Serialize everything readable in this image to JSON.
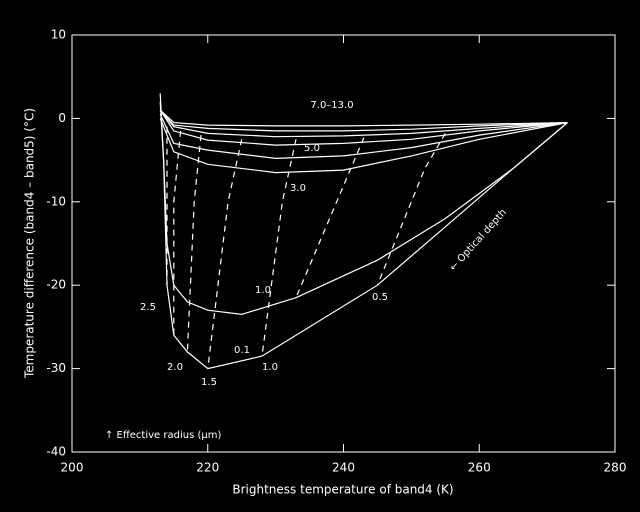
{
  "chart_data": {
    "type": "line",
    "xlabel": "Brightness temperature of band4 (K)",
    "ylabel": "Temperature difference (band4 – band5) (°C)",
    "xlim": [
      200,
      280
    ],
    "xticks": [
      200,
      220,
      240,
      260,
      280
    ],
    "ylim": [
      -40,
      10
    ],
    "yticks": [
      -40,
      -30,
      -20,
      -10,
      0,
      10
    ],
    "color": "#ffffff",
    "series": [
      {
        "x": [
          213,
          213.5,
          214,
          215,
          217,
          220,
          228,
          235,
          245,
          255,
          265,
          273
        ],
        "values": [
          3,
          -5,
          -20,
          -26,
          -28,
          -30,
          -28.5,
          -25,
          -20,
          -13,
          -6,
          -0.5
        ],
        "dashed": false
      },
      {
        "x": [
          213,
          213.5,
          214,
          215,
          217,
          220,
          225,
          233,
          245,
          255,
          265,
          273
        ],
        "values": [
          2,
          -5,
          -15,
          -20,
          -22,
          -23,
          -23.5,
          -21.5,
          -17,
          -12,
          -6,
          -0.5
        ],
        "dashed": false
      },
      {
        "x": [
          213,
          215,
          220,
          230,
          240,
          250,
          260,
          273
        ],
        "values": [
          0,
          -4,
          -5.5,
          -6.5,
          -6.2,
          -4.5,
          -2.5,
          -0.5
        ],
        "dashed": false
      },
      {
        "x": [
          213,
          215,
          220,
          230,
          240,
          250,
          260,
          273
        ],
        "values": [
          0.5,
          -3,
          -3.8,
          -4.8,
          -4.5,
          -3.5,
          -2,
          -0.5
        ],
        "dashed": false
      },
      {
        "x": [
          213,
          215,
          220,
          230,
          240,
          250,
          260,
          273
        ],
        "values": [
          1,
          -1.5,
          -2.6,
          -3.2,
          -3,
          -2.5,
          -1.5,
          -0.5
        ],
        "dashed": false
      },
      {
        "x": [
          213,
          215,
          220,
          230,
          240,
          250,
          260,
          273
        ],
        "values": [
          1,
          -1,
          -1.8,
          -2.2,
          -2.1,
          -1.8,
          -1.2,
          -0.5
        ],
        "dashed": false
      },
      {
        "x": [
          213,
          215,
          220,
          230,
          240,
          250,
          260,
          273
        ],
        "values": [
          1,
          -0.8,
          -1.2,
          -1.5,
          -1.5,
          -1.3,
          -0.9,
          -0.5
        ],
        "dashed": false
      },
      {
        "x": [
          213,
          215,
          220,
          230,
          240,
          250,
          260,
          273
        ],
        "values": [
          1,
          -0.5,
          -0.8,
          -0.9,
          -0.9,
          -0.8,
          -0.7,
          -0.5
        ],
        "dashed": false
      },
      {
        "x": [
          214,
          214,
          214
        ],
        "values": [
          -1,
          -10,
          -20
        ],
        "dashed": true
      },
      {
        "x": [
          216,
          215,
          215
        ],
        "values": [
          -1.5,
          -10,
          -26
        ],
        "dashed": true
      },
      {
        "x": [
          219,
          218,
          217
        ],
        "values": [
          -2,
          -10,
          -28
        ],
        "dashed": true
      },
      {
        "x": [
          225,
          223,
          220
        ],
        "values": [
          -2.5,
          -10,
          -30
        ],
        "dashed": true
      },
      {
        "x": [
          233,
          231,
          228
        ],
        "values": [
          -2.5,
          -10,
          -28.5
        ],
        "dashed": true
      },
      {
        "x": [
          243,
          239,
          233
        ],
        "values": [
          -2.3,
          -10,
          -21.5
        ],
        "dashed": true
      },
      {
        "x": [
          255,
          252,
          245
        ],
        "values": [
          -1.8,
          -6,
          -20
        ],
        "dashed": true
      }
    ],
    "annotations": [
      "7.0–13.0",
      "5.0",
      "3.0",
      "1.0",
      "0.5",
      "2.5",
      "2.0",
      "1.5",
      "0.1",
      "1.0",
      "← Optical depth",
      "↑ Effective radius (μm)"
    ]
  }
}
